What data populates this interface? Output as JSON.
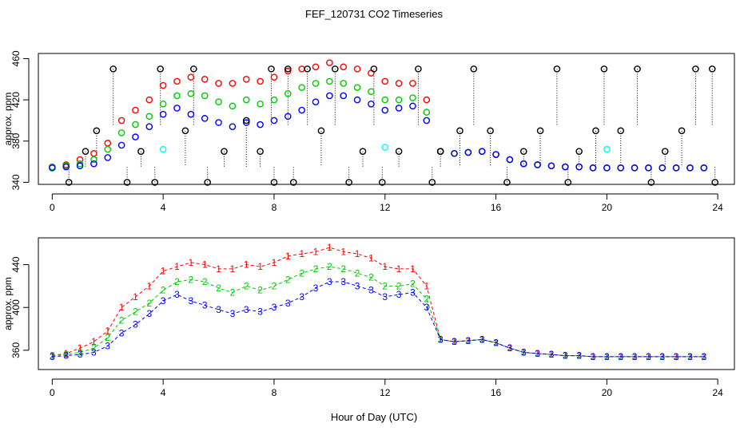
{
  "figure": {
    "title": "FEF_120731  CO2 Timeseries",
    "xlabel": "Hour of Day (UTC)"
  },
  "colors": {
    "series1": "#ff0000",
    "series2": "#00cc00",
    "series3": "#0000ff",
    "extreme": "#000000",
    "cyan": "#00ffff",
    "stem": "#000000"
  },
  "chart_data": [
    {
      "type": "scatter",
      "title": "FEF_120731  CO2 Timeseries",
      "xlabel": "",
      "ylabel": "approx. ppm",
      "xlim": [
        -0.5,
        24.6
      ],
      "ylim": [
        338,
        465
      ],
      "xticks": [
        0,
        4,
        8,
        12,
        16,
        20,
        24
      ],
      "yticks": [
        340,
        380,
        420,
        460
      ],
      "grid": false,
      "marker": "circle",
      "series": [
        {
          "name": "1",
          "color": "#ff0000",
          "x": [
            0,
            0.5,
            1,
            1.5,
            2,
            2.5,
            3,
            3.5,
            4,
            4.5,
            5,
            5.5,
            6,
            6.5,
            7,
            7.5,
            8,
            8.5,
            9,
            9.5,
            10,
            10.5,
            11,
            11.5,
            12,
            12.5,
            13,
            13.5,
            14,
            14.5,
            15,
            15.5,
            16,
            16.5,
            17,
            17.5,
            18,
            18.5,
            19,
            19.5,
            20,
            20.5,
            21,
            21.5,
            22,
            22.5,
            23,
            23.5
          ],
          "y": [
            355,
            357,
            362,
            368,
            378,
            400,
            410,
            420,
            434,
            438,
            442,
            440,
            436,
            436,
            440,
            438,
            442,
            448,
            450,
            452,
            456,
            452,
            450,
            446,
            438,
            436,
            436,
            420,
            370,
            368,
            369,
            370,
            367,
            362,
            358,
            357,
            356,
            355,
            355,
            354,
            354,
            354,
            354,
            354,
            354,
            354,
            354,
            354
          ]
        },
        {
          "name": "2",
          "color": "#00cc00",
          "x": [
            0,
            0.5,
            1,
            1.5,
            2,
            2.5,
            3,
            3.5,
            4,
            4.5,
            5,
            5.5,
            6,
            6.5,
            7,
            7.5,
            8,
            8.5,
            9,
            9.5,
            10,
            10.5,
            11,
            11.5,
            12,
            12.5,
            13,
            13.5,
            14,
            14.5,
            15,
            15.5,
            16,
            16.5,
            17,
            17.5,
            18,
            18.5,
            19,
            19.5,
            20,
            20.5,
            21,
            21.5,
            22,
            22.5,
            23,
            23.5
          ],
          "y": [
            355,
            356,
            358,
            362,
            372,
            388,
            396,
            404,
            416,
            424,
            426,
            424,
            418,
            414,
            420,
            416,
            420,
            426,
            432,
            436,
            438,
            436,
            432,
            428,
            420,
            420,
            422,
            408,
            370,
            368,
            369,
            370,
            367,
            362,
            358,
            357,
            356,
            355,
            355,
            354,
            354,
            354,
            354,
            354,
            354,
            354,
            354,
            354
          ]
        },
        {
          "name": "3",
          "color": "#0000ff",
          "x": [
            0,
            0.5,
            1,
            1.5,
            2,
            2.5,
            3,
            3.5,
            4,
            4.5,
            5,
            5.5,
            6,
            6.5,
            7,
            7.5,
            8,
            8.5,
            9,
            9.5,
            10,
            10.5,
            11,
            11.5,
            12,
            12.5,
            13,
            13.5,
            14,
            14.5,
            15,
            15.5,
            16,
            16.5,
            17,
            17.5,
            18,
            18.5,
            19,
            19.5,
            20,
            20.5,
            21,
            21.5,
            22,
            22.5,
            23,
            23.5
          ],
          "y": [
            354,
            355,
            356,
            358,
            364,
            376,
            384,
            394,
            406,
            412,
            406,
            402,
            398,
            394,
            398,
            396,
            400,
            404,
            410,
            418,
            424,
            424,
            420,
            416,
            410,
            412,
            414,
            400,
            370,
            368,
            369,
            370,
            367,
            362,
            358,
            357,
            356,
            355,
            355,
            354,
            354,
            354,
            354,
            354,
            354,
            354,
            354,
            354
          ]
        },
        {
          "name": "extremes",
          "color": "#000000",
          "x": [
            0.6,
            1.2,
            1.6,
            2.2,
            2.7,
            3.2,
            3.7,
            3.9,
            4.8,
            5.1,
            5.6,
            6.2,
            7.0,
            7.5,
            7.9,
            8.0,
            8.5,
            8.7,
            9.2,
            9.7,
            10.2,
            10.7,
            11.2,
            11.6,
            11.9,
            12.5,
            13.2,
            13.7,
            14.0,
            14.7,
            15.2,
            15.8,
            16.4,
            17.0,
            17.6,
            18.2,
            18.6,
            19.0,
            19.6,
            19.9,
            20.5,
            21.1,
            21.6,
            22.1,
            22.7,
            23.2,
            23.8,
            23.9
          ],
          "y": [
            340,
            370,
            390,
            450,
            340,
            370,
            340,
            450,
            390,
            450,
            340,
            370,
            400,
            370,
            450,
            340,
            450,
            340,
            450,
            390,
            450,
            340,
            370,
            450,
            340,
            370,
            450,
            340,
            370,
            390,
            450,
            390,
            340,
            370,
            390,
            450,
            340,
            370,
            390,
            450,
            390,
            450,
            340,
            370,
            390,
            450,
            450,
            340
          ]
        },
        {
          "name": "cyan",
          "color": "#00ffff",
          "x": [
            4.0,
            12.0,
            20.0
          ],
          "y": [
            372,
            374,
            372
          ]
        }
      ]
    },
    {
      "type": "line",
      "title": "",
      "xlabel": "Hour of Day (UTC)",
      "ylabel": "approx. ppm",
      "xlim": [
        -0.5,
        24.6
      ],
      "ylim": [
        342,
        465
      ],
      "xticks": [
        0,
        4,
        8,
        12,
        16,
        20,
        24
      ],
      "yticks": [
        360,
        400,
        440
      ],
      "grid": false,
      "marker": "label",
      "series": [
        {
          "name": "1",
          "color": "#ff0000",
          "x": [
            0,
            0.5,
            1,
            1.5,
            2,
            2.5,
            3,
            3.5,
            4,
            4.5,
            5,
            5.5,
            6,
            6.5,
            7,
            7.5,
            8,
            8.5,
            9,
            9.5,
            10,
            10.5,
            11,
            11.5,
            12,
            12.5,
            13,
            13.5,
            14,
            14.5,
            15,
            15.5,
            16,
            16.5,
            17,
            17.5,
            18,
            18.5,
            19,
            19.5,
            20,
            20.5,
            21,
            21.5,
            22,
            22.5,
            23,
            23.5
          ],
          "y": [
            355,
            357,
            362,
            368,
            378,
            400,
            410,
            420,
            434,
            438,
            442,
            440,
            436,
            436,
            440,
            438,
            442,
            448,
            450,
            452,
            456,
            452,
            450,
            446,
            438,
            436,
            436,
            420,
            370,
            368,
            369,
            370,
            367,
            362,
            358,
            357,
            356,
            355,
            355,
            354,
            354,
            354,
            354,
            354,
            354,
            354,
            354,
            354
          ]
        },
        {
          "name": "2",
          "color": "#00cc00",
          "x": [
            0,
            0.5,
            1,
            1.5,
            2,
            2.5,
            3,
            3.5,
            4,
            4.5,
            5,
            5.5,
            6,
            6.5,
            7,
            7.5,
            8,
            8.5,
            9,
            9.5,
            10,
            10.5,
            11,
            11.5,
            12,
            12.5,
            13,
            13.5,
            14,
            14.5,
            15,
            15.5,
            16,
            16.5,
            17,
            17.5,
            18,
            18.5,
            19,
            19.5,
            20,
            20.5,
            21,
            21.5,
            22,
            22.5,
            23,
            23.5
          ],
          "y": [
            355,
            356,
            358,
            362,
            372,
            388,
            396,
            404,
            416,
            424,
            426,
            424,
            418,
            414,
            420,
            416,
            420,
            426,
            432,
            436,
            438,
            436,
            432,
            428,
            420,
            420,
            422,
            408,
            370,
            368,
            369,
            370,
            367,
            362,
            358,
            357,
            356,
            355,
            355,
            354,
            354,
            354,
            354,
            354,
            354,
            354,
            354,
            354
          ]
        },
        {
          "name": "3",
          "color": "#0000ff",
          "x": [
            0,
            0.5,
            1,
            1.5,
            2,
            2.5,
            3,
            3.5,
            4,
            4.5,
            5,
            5.5,
            6,
            6.5,
            7,
            7.5,
            8,
            8.5,
            9,
            9.5,
            10,
            10.5,
            11,
            11.5,
            12,
            12.5,
            13,
            13.5,
            14,
            14.5,
            15,
            15.5,
            16,
            16.5,
            17,
            17.5,
            18,
            18.5,
            19,
            19.5,
            20,
            20.5,
            21,
            21.5,
            22,
            22.5,
            23,
            23.5
          ],
          "y": [
            354,
            355,
            356,
            358,
            364,
            376,
            384,
            394,
            406,
            412,
            406,
            402,
            398,
            394,
            398,
            396,
            400,
            404,
            410,
            418,
            424,
            424,
            420,
            416,
            410,
            412,
            414,
            400,
            370,
            368,
            369,
            370,
            367,
            362,
            358,
            357,
            356,
            355,
            355,
            354,
            354,
            354,
            354,
            354,
            354,
            354,
            354,
            354
          ]
        }
      ]
    }
  ]
}
